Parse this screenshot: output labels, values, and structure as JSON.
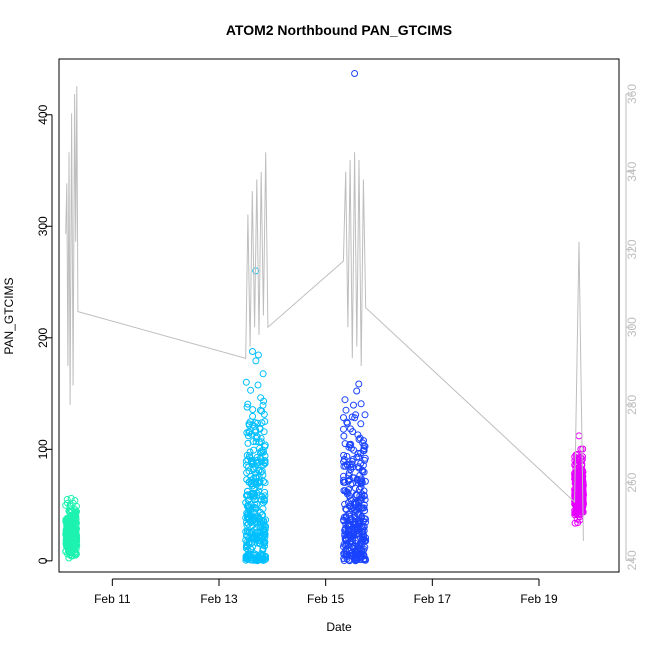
{
  "chart_data": {
    "type": "scatter",
    "title": "ATOM2 Northbound PAN_GTCIMS",
    "xlabel": "Date",
    "ylabel": "PAN_GTCIMS",
    "xlim": [
      "2024-02-10 00:00",
      "2024-02-20 12:00"
    ],
    "ylim": [
      -10,
      450
    ],
    "y_ticks": [
      0,
      100,
      200,
      300,
      400
    ],
    "x_ticks": [
      {
        "label": "Feb 11",
        "date": "2024-02-11"
      },
      {
        "label": "Feb 13",
        "date": "2024-02-13"
      },
      {
        "label": "Feb 15",
        "date": "2024-02-15"
      },
      {
        "label": "Feb 17",
        "date": "2024-02-17"
      },
      {
        "label": "Feb 19",
        "date": "2024-02-19"
      }
    ],
    "right_axis": {
      "ylim": [
        237,
        369
      ],
      "ticks": [
        240,
        260,
        280,
        300,
        320,
        340,
        360
      ],
      "color": "#bebebe"
    },
    "grid": false,
    "series": [
      {
        "color": "#1ef2b0",
        "x_start": "2024-02-10 03:00",
        "x_end": "2024-02-10 08:00",
        "y_median": 20,
        "y_spread": 14,
        "y_max": 56,
        "y_min": 0
      },
      {
        "color": "#00bfff",
        "x_start": "2024-02-13 12:00",
        "x_end": "2024-02-13 21:00",
        "y_median": 40,
        "y_spread": 60,
        "y_max": 260,
        "y_min": 0
      },
      {
        "color": "#1a43ff",
        "x_start": "2024-02-15 08:00",
        "x_end": "2024-02-15 18:00",
        "y_median": 40,
        "y_spread": 50,
        "y_max": 437,
        "y_min": 0
      },
      {
        "color": "#e600ff",
        "x_start": "2024-02-19 16:00",
        "x_end": "2024-02-19 20:00",
        "y_median": 60,
        "y_spread": 18,
        "y_max": 112,
        "y_min": 18
      }
    ],
    "line_series": {
      "color": "#bebebe",
      "points": [
        [
          "2024-02-10 03:00",
          324
        ],
        [
          "2024-02-10 03:30",
          337
        ],
        [
          "2024-02-10 04:00",
          290
        ],
        [
          "2024-02-10 04:30",
          345
        ],
        [
          "2024-02-10 05:00",
          280
        ],
        [
          "2024-02-10 05:40",
          355
        ],
        [
          "2024-02-10 06:20",
          285
        ],
        [
          "2024-02-10 07:00",
          360
        ],
        [
          "2024-02-10 07:30",
          322
        ],
        [
          "2024-02-10 08:00",
          362
        ],
        [
          "2024-02-10 08:30",
          304
        ],
        [
          "2024-02-13 12:00",
          292
        ],
        [
          "2024-02-13 13:00",
          329
        ],
        [
          "2024-02-13 14:00",
          295
        ],
        [
          "2024-02-13 15:00",
          335
        ],
        [
          "2024-02-13 16:00",
          300
        ],
        [
          "2024-02-13 17:00",
          338
        ],
        [
          "2024-02-13 18:00",
          298
        ],
        [
          "2024-02-13 19:00",
          340
        ],
        [
          "2024-02-13 20:00",
          303
        ],
        [
          "2024-02-13 21:00",
          345
        ],
        [
          "2024-02-13 22:00",
          300
        ],
        [
          "2024-02-15 08:00",
          317
        ],
        [
          "2024-02-15 09:00",
          340
        ],
        [
          "2024-02-15 10:00",
          300
        ],
        [
          "2024-02-15 11:00",
          343
        ],
        [
          "2024-02-15 12:00",
          292
        ],
        [
          "2024-02-15 13:00",
          345
        ],
        [
          "2024-02-15 14:00",
          295
        ],
        [
          "2024-02-15 15:00",
          343
        ],
        [
          "2024-02-15 16:00",
          290
        ],
        [
          "2024-02-15 17:00",
          338
        ],
        [
          "2024-02-15 18:00",
          305
        ],
        [
          "2024-02-19 16:00",
          255
        ],
        [
          "2024-02-19 18:00",
          322
        ],
        [
          "2024-02-19 20:00",
          245
        ]
      ]
    }
  }
}
